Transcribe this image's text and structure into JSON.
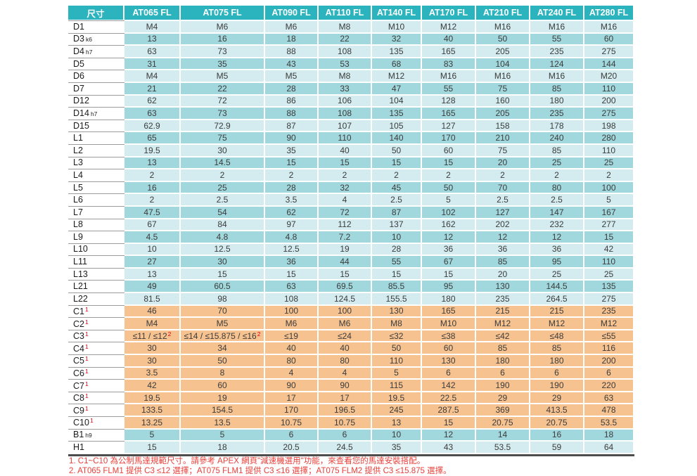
{
  "colors": {
    "header_bg": "#2bb3be",
    "header_text": "#ffffff",
    "row_light": "#d4ecef",
    "row_dark": "#a1d8dd",
    "row_orange": "#f6c28f",
    "cell_text": "#3c3c3c",
    "label_separator": "#9c9c9c",
    "table_bottom_border": "#4d4d4d",
    "note_text": "#e8403a",
    "superscript_red": "#e60012"
  },
  "table": {
    "columns": [
      "尺寸",
      "AT065 FL",
      "AT075 FL",
      "AT090 FL",
      "AT110 FL",
      "AT140 FL",
      "AT170 FL",
      "AT210 FL",
      "AT240 FL",
      "AT280 FL"
    ],
    "rows": [
      {
        "label": "D1",
        "tone": "light",
        "values": [
          "M4",
          "M6",
          "M6",
          "M8",
          "M10",
          "M12",
          "M16",
          "M16",
          "M16"
        ]
      },
      {
        "label": "D3",
        "sub": "k6",
        "tone": "dark",
        "values": [
          "13",
          "16",
          "18",
          "22",
          "32",
          "40",
          "50",
          "55",
          "60"
        ]
      },
      {
        "label": "D4",
        "sub": "h7",
        "tone": "light",
        "values": [
          "63",
          "73",
          "88",
          "108",
          "135",
          "165",
          "205",
          "235",
          "275"
        ]
      },
      {
        "label": "D5",
        "tone": "dark",
        "values": [
          "31",
          "35",
          "43",
          "53",
          "68",
          "83",
          "104",
          "124",
          "144"
        ]
      },
      {
        "label": "D6",
        "tone": "light",
        "values": [
          "M4",
          "M5",
          "M5",
          "M8",
          "M12",
          "M16",
          "M16",
          "M16",
          "M20"
        ]
      },
      {
        "label": "D7",
        "tone": "dark",
        "values": [
          "21",
          "22",
          "28",
          "33",
          "47",
          "55",
          "75",
          "85",
          "110"
        ]
      },
      {
        "label": "D12",
        "tone": "light",
        "values": [
          "62",
          "72",
          "86",
          "106",
          "104",
          "128",
          "160",
          "180",
          "200"
        ]
      },
      {
        "label": "D14",
        "sub": "h7",
        "tone": "dark",
        "values": [
          "63",
          "73",
          "88",
          "108",
          "135",
          "165",
          "205",
          "235",
          "275"
        ]
      },
      {
        "label": "D15",
        "tone": "light",
        "values": [
          "62.9",
          "72.9",
          "87",
          "107",
          "105",
          "127",
          "158",
          "178",
          "198"
        ]
      },
      {
        "label": "L1",
        "tone": "dark",
        "values": [
          "65",
          "75",
          "90",
          "110",
          "140",
          "170",
          "210",
          "240",
          "280"
        ]
      },
      {
        "label": "L2",
        "tone": "light",
        "values": [
          "19.5",
          "30",
          "35",
          "40",
          "50",
          "60",
          "75",
          "85",
          "110"
        ]
      },
      {
        "label": "L3",
        "tone": "dark",
        "values": [
          "13",
          "14.5",
          "15",
          "15",
          "15",
          "15",
          "20",
          "25",
          "25"
        ]
      },
      {
        "label": "L4",
        "tone": "light",
        "values": [
          "2",
          "2",
          "2",
          "2",
          "2",
          "2",
          "2",
          "2",
          "2"
        ]
      },
      {
        "label": "L5",
        "tone": "dark",
        "values": [
          "16",
          "25",
          "28",
          "32",
          "45",
          "50",
          "70",
          "80",
          "100"
        ]
      },
      {
        "label": "L6",
        "tone": "light",
        "values": [
          "2",
          "2.5",
          "3.5",
          "4",
          "2.5",
          "5",
          "2.5",
          "2.5",
          "5"
        ]
      },
      {
        "label": "L7",
        "tone": "dark",
        "values": [
          "47.5",
          "54",
          "62",
          "72",
          "87",
          "102",
          "127",
          "147",
          "167"
        ]
      },
      {
        "label": "L8",
        "tone": "light",
        "values": [
          "67",
          "84",
          "97",
          "112",
          "137",
          "162",
          "202",
          "232",
          "277"
        ]
      },
      {
        "label": "L9",
        "tone": "dark",
        "values": [
          "4.5",
          "4.8",
          "4.8",
          "7.2",
          "10",
          "12",
          "12",
          "12",
          "15"
        ]
      },
      {
        "label": "L10",
        "tone": "light",
        "values": [
          "10",
          "12.5",
          "12.5",
          "19",
          "28",
          "36",
          "36",
          "36",
          "42"
        ]
      },
      {
        "label": "L11",
        "tone": "dark",
        "values": [
          "27",
          "30",
          "36",
          "44",
          "55",
          "67",
          "85",
          "95",
          "110"
        ]
      },
      {
        "label": "L13",
        "tone": "light",
        "values": [
          "13",
          "15",
          "15",
          "15",
          "15",
          "15",
          "20",
          "25",
          "25"
        ]
      },
      {
        "label": "L21",
        "tone": "dark",
        "values": [
          "49",
          "60.5",
          "63",
          "69.5",
          "85.5",
          "95",
          "130",
          "144.5",
          "135"
        ]
      },
      {
        "label": "L22",
        "tone": "light",
        "values": [
          "81.5",
          "98",
          "108",
          "124.5",
          "155.5",
          "180",
          "235",
          "264.5",
          "275"
        ]
      },
      {
        "label": "C1",
        "sup": "1",
        "tone": "orange",
        "values": [
          "46",
          "70",
          "100",
          "100",
          "130",
          "165",
          "215",
          "215",
          "235"
        ]
      },
      {
        "label": "C2",
        "sup": "1",
        "tone": "orange",
        "values": [
          "M4",
          "M5",
          "M6",
          "M6",
          "M8",
          "M10",
          "M12",
          "M12",
          "M12"
        ]
      },
      {
        "label": "C3",
        "sup": "1",
        "tone": "orange",
        "values": [
          {
            "text": "≤11 / ≤12",
            "sup": "2"
          },
          {
            "text": "≤14 / ≤15.875 / ≤16",
            "sup": "2"
          },
          "≤19",
          "≤24",
          "≤32",
          "≤38",
          "≤42",
          "≤48",
          "≤55"
        ]
      },
      {
        "label": "C4",
        "sup": "1",
        "tone": "orange",
        "values": [
          "30",
          "34",
          "40",
          "40",
          "50",
          "60",
          "85",
          "85",
          "116"
        ]
      },
      {
        "label": "C5",
        "sup": "1",
        "tone": "orange",
        "values": [
          "30",
          "50",
          "80",
          "80",
          "110",
          "130",
          "180",
          "180",
          "200"
        ]
      },
      {
        "label": "C6",
        "sup": "1",
        "tone": "orange",
        "values": [
          "3.5",
          "8",
          "4",
          "4",
          "5",
          "6",
          "6",
          "6",
          "6"
        ]
      },
      {
        "label": "C7",
        "sup": "1",
        "tone": "orange",
        "values": [
          "42",
          "60",
          "90",
          "90",
          "115",
          "142",
          "190",
          "190",
          "220"
        ]
      },
      {
        "label": "C8",
        "sup": "1",
        "tone": "orange",
        "values": [
          "19.5",
          "19",
          "17",
          "17",
          "19.5",
          "22.5",
          "29",
          "29",
          "63"
        ]
      },
      {
        "label": "C9",
        "sup": "1",
        "tone": "orange",
        "values": [
          "133.5",
          "154.5",
          "170",
          "196.5",
          "245",
          "287.5",
          "369",
          "413.5",
          "478"
        ]
      },
      {
        "label": "C10",
        "sup": "1",
        "tone": "orange",
        "values": [
          "13.25",
          "13.5",
          "10.75",
          "10.75",
          "13",
          "15",
          "20.75",
          "20.75",
          "53.5"
        ]
      },
      {
        "label": "B1",
        "sub": "h9",
        "tone": "dark",
        "values": [
          "5",
          "5",
          "6",
          "6",
          "10",
          "12",
          "14",
          "16",
          "18"
        ]
      },
      {
        "label": "H1",
        "tone": "light",
        "values": [
          "15",
          "18",
          "20.5",
          "24.5",
          "35",
          "43",
          "53.5",
          "59",
          "64"
        ]
      }
    ]
  },
  "notes": [
    "1. C1~C10 為公制馬達規範尺寸。請參考 APEX 網頁\"減速機選用\"功能，來查看您的馬達安裝搭配。",
    "2. AT065 FLM1 提供 C3 ≤12 選擇；AT075 FLM1 提供 C3 ≤16 選擇；AT075 FLM2 提供 C3 ≤15.875 選擇。"
  ]
}
